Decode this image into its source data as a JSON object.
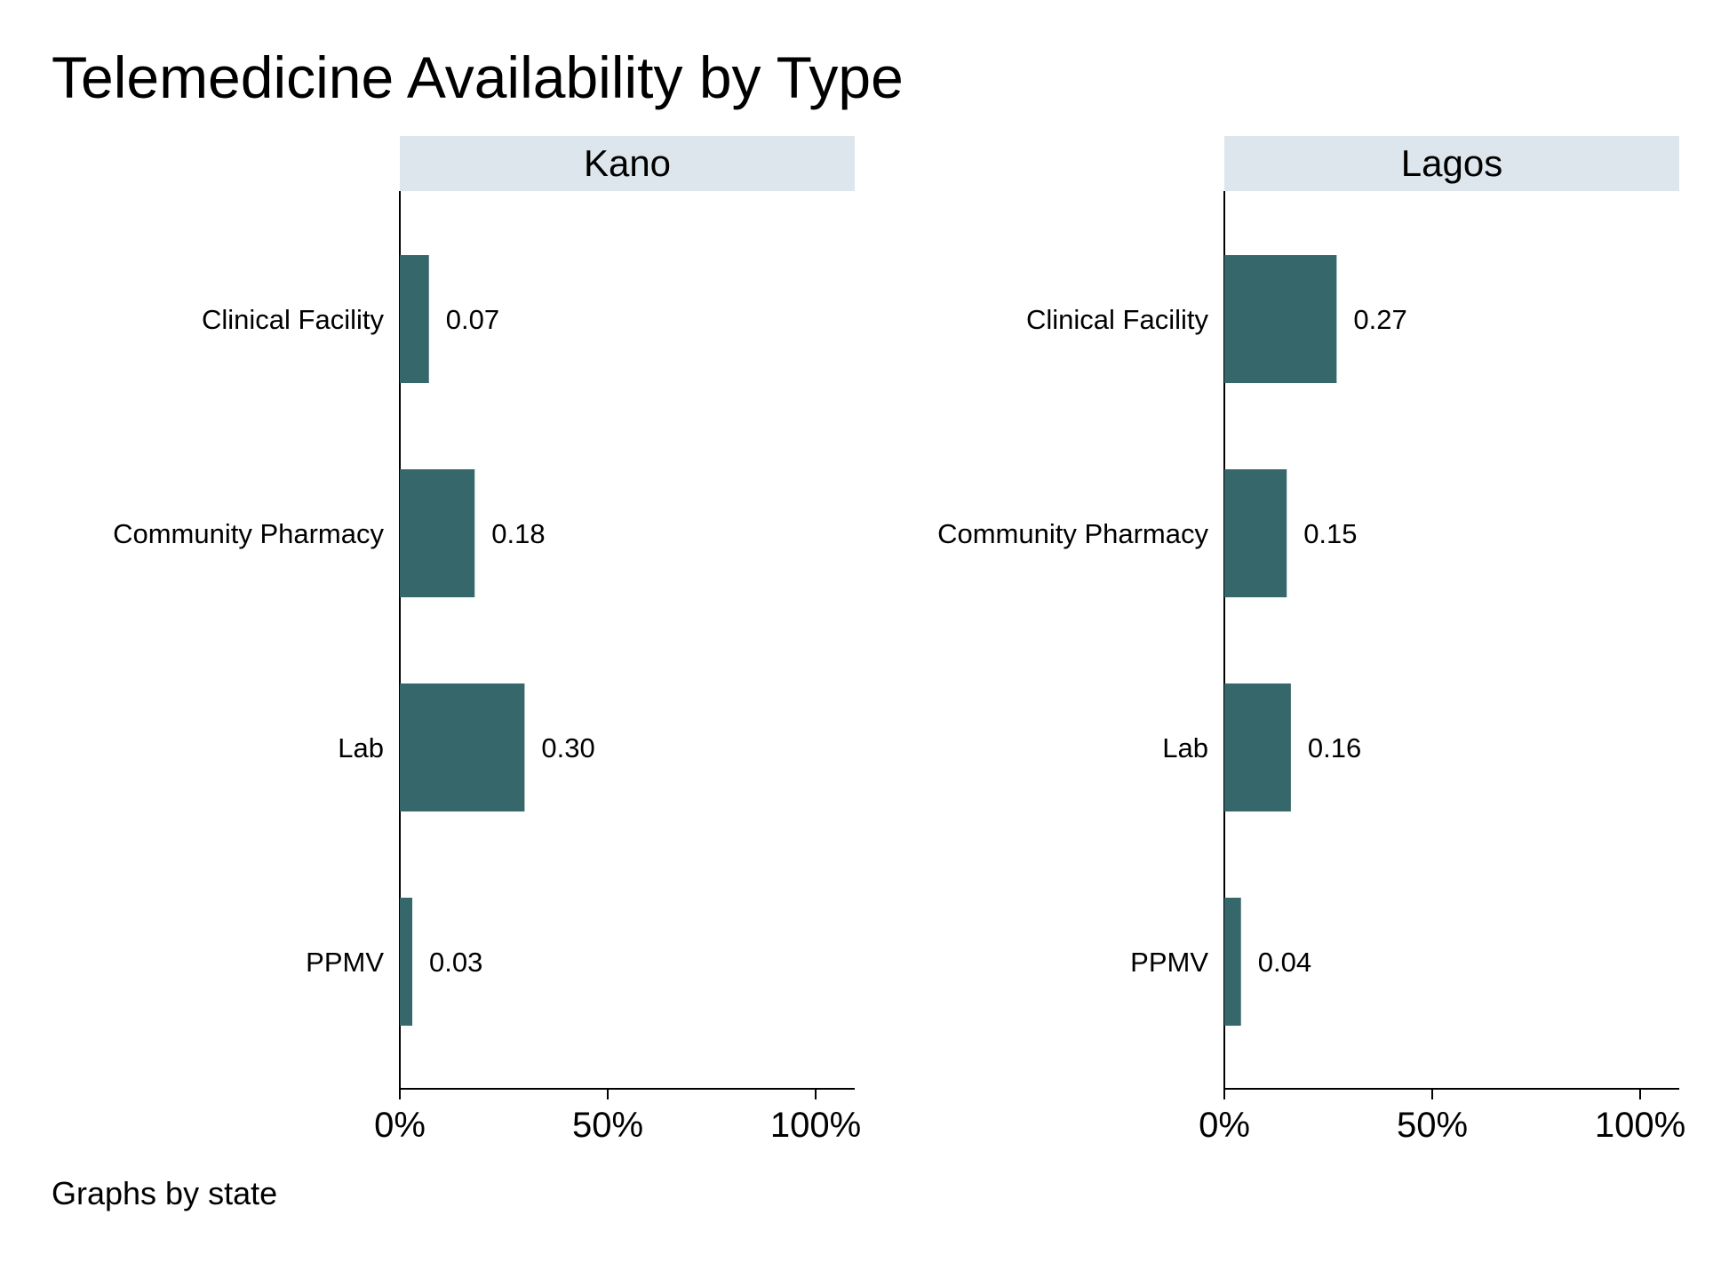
{
  "title": "Telemedicine Availability by Type",
  "note": "Graphs by state",
  "colors": {
    "bar": "#36676b",
    "panel_header_bg": "#dce6ec",
    "axis": "#000000",
    "background": "#ffffff"
  },
  "chart_data": {
    "type": "bar",
    "orientation": "horizontal",
    "title": "Telemedicine Availability by Type",
    "note": "Graphs by state",
    "categories": [
      "Clinical Facility",
      "Community Pharmacy",
      "Lab",
      "PPMV"
    ],
    "xlim": [
      0,
      1.09
    ],
    "x_ticks": [
      0,
      0.5,
      1.0
    ],
    "x_tick_labels": [
      "0%",
      "50%",
      "100%"
    ],
    "grid": false,
    "legend": "none",
    "value_labels_format": "0.00",
    "panels": [
      {
        "name": "Kano",
        "values": [
          0.07,
          0.18,
          0.3,
          0.03
        ],
        "value_labels": [
          "0.07",
          "0.18",
          "0.30",
          "0.03"
        ]
      },
      {
        "name": "Lagos",
        "values": [
          0.27,
          0.15,
          0.16,
          0.04
        ],
        "value_labels": [
          "0.27",
          "0.15",
          "0.16",
          "0.04"
        ]
      }
    ]
  }
}
